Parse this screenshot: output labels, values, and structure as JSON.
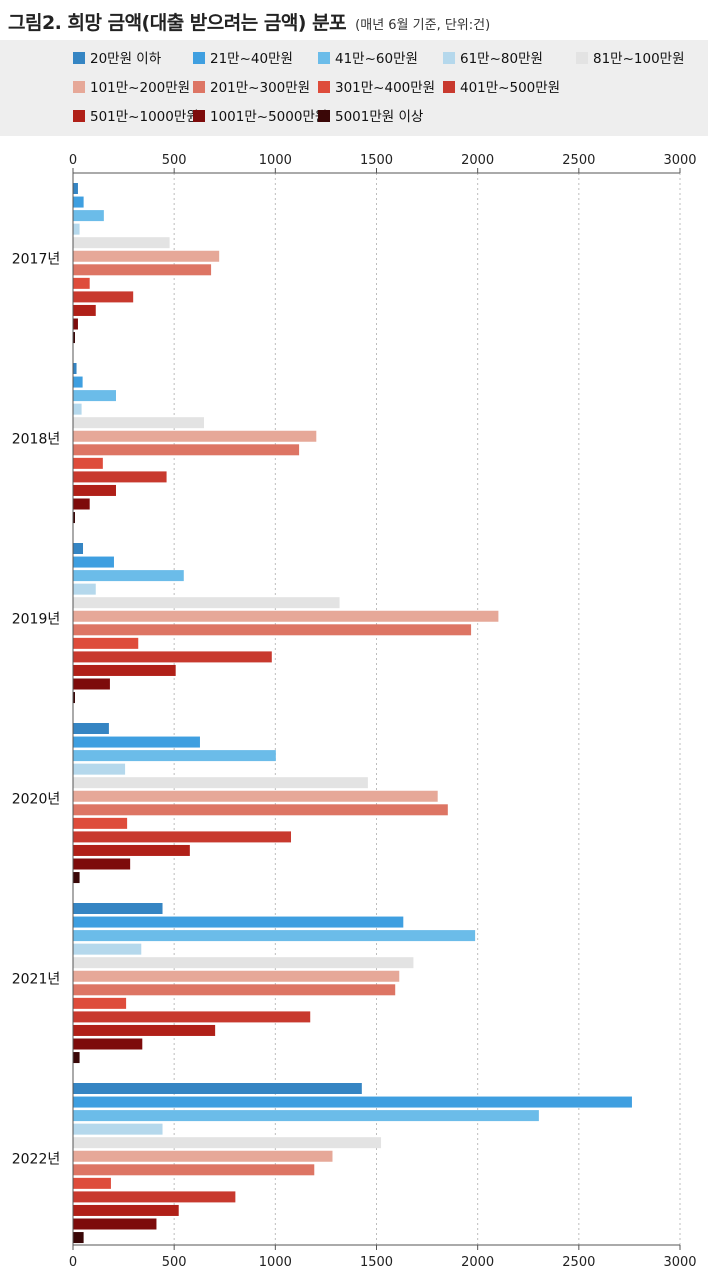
{
  "title": {
    "main": "그림2. 희망 금액(대출 받으려는 금액) 분포",
    "sub": "(매년 6월 기준, 단위:건)"
  },
  "chart_data": {
    "type": "bar",
    "orientation": "horizontal",
    "title": "그림2. 희망 금액(대출 받으려는 금액) 분포",
    "subtitle": "(매년 6월 기준, 단위:건)",
    "xlabel": "",
    "ylabel": "",
    "xlim": [
      0,
      3000
    ],
    "xticks": [
      0,
      500,
      1000,
      1500,
      2000,
      2500,
      3000
    ],
    "grid": true,
    "legend_position": "top",
    "categories": [
      "2017년",
      "2018년",
      "2019년",
      "2020년",
      "2021년",
      "2022년"
    ],
    "series": [
      {
        "name": "20만원 이하",
        "color": "#3585c3",
        "values": [
          22,
          15,
          47,
          175,
          440,
          1425
        ]
      },
      {
        "name": "21만~40만원",
        "color": "#3f9fe0",
        "values": [
          50,
          45,
          200,
          625,
          1630,
          2760
        ]
      },
      {
        "name": "41만~60만원",
        "color": "#6bbce9",
        "values": [
          150,
          210,
          545,
          1000,
          1985,
          2300
        ]
      },
      {
        "name": "61만~80만원",
        "color": "#b5d8ec",
        "values": [
          30,
          40,
          110,
          255,
          335,
          440
        ]
      },
      {
        "name": "81만~100만원",
        "color": "#e3e3e3",
        "values": [
          475,
          645,
          1315,
          1455,
          1680,
          1520
        ]
      },
      {
        "name": "101만~200만원",
        "color": "#e6a898",
        "values": [
          720,
          1200,
          2100,
          1800,
          1610,
          1280
        ]
      },
      {
        "name": "201만~300만원",
        "color": "#dd7564",
        "values": [
          680,
          1115,
          1965,
          1850,
          1590,
          1190
        ]
      },
      {
        "name": "301만~400만원",
        "color": "#de4c3b",
        "values": [
          80,
          145,
          320,
          265,
          260,
          185
        ]
      },
      {
        "name": "401만~500만원",
        "color": "#c8392e",
        "values": [
          295,
          460,
          980,
          1075,
          1170,
          800
        ]
      },
      {
        "name": "501만~1000만원",
        "color": "#b02018",
        "values": [
          110,
          210,
          505,
          575,
          700,
          520
        ]
      },
      {
        "name": "1001만~5000만원",
        "color": "#7d0b0b",
        "values": [
          22,
          80,
          180,
          280,
          340,
          410
        ]
      },
      {
        "name": "5001만원 이상",
        "color": "#3a0707",
        "values": [
          5,
          5,
          5,
          30,
          30,
          50
        ]
      }
    ]
  }
}
